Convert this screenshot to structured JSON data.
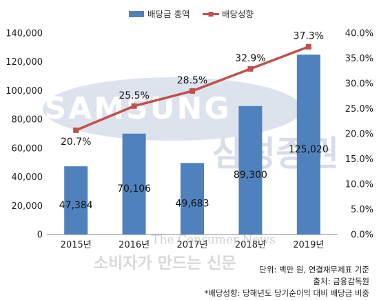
{
  "chart_data": {
    "type": "bar",
    "categories": [
      "2015년",
      "2016년",
      "2017년",
      "2018년",
      "2019년"
    ],
    "series": [
      {
        "name": "배당금 총액",
        "kind": "bar",
        "axis": "left",
        "color": "#4f81bd",
        "values": [
          47384,
          70106,
          49683,
          89300,
          125020
        ],
        "labels": [
          "47,384",
          "70,106",
          "49,683",
          "89,300",
          "125,020"
        ]
      },
      {
        "name": "배당성향",
        "kind": "line",
        "axis": "right",
        "color": "#c0504d",
        "values": [
          20.7,
          25.5,
          28.5,
          32.9,
          37.3
        ],
        "labels": [
          "20.7%",
          "25.5%",
          "28.5%",
          "32.9%",
          "37.3%"
        ]
      }
    ],
    "y_left": {
      "min": 0,
      "max": 140000,
      "ticks": [
        "0",
        "20,000",
        "40,000",
        "60,000",
        "80,000",
        "100,000",
        "120,000",
        "140,000"
      ]
    },
    "y_right": {
      "min": 0,
      "max": 40,
      "ticks": [
        "0.0%",
        "5.0%",
        "10.0%",
        "15.0%",
        "20.0%",
        "25.0%",
        "30.0%",
        "35.0%",
        "40.0%"
      ]
    },
    "legend_position": "top",
    "grid": false
  },
  "footnotes": {
    "unit": "단위: 백만 원, 연결재무제표 기준",
    "source": "출처: 금융감독원",
    "definition": "*배당성향: 당해년도 당기순이익 대비 배당금 비중"
  },
  "watermarks": {
    "logo_text": "SAMSUNG",
    "logo_korean": "삼성증권",
    "site_text": "The Consumer News",
    "slogan": "소비자가 만드는 신문"
  },
  "colors": {
    "bar": "#4f81bd",
    "line": "#c0504d",
    "logo_watermark": "#bcc6db"
  }
}
